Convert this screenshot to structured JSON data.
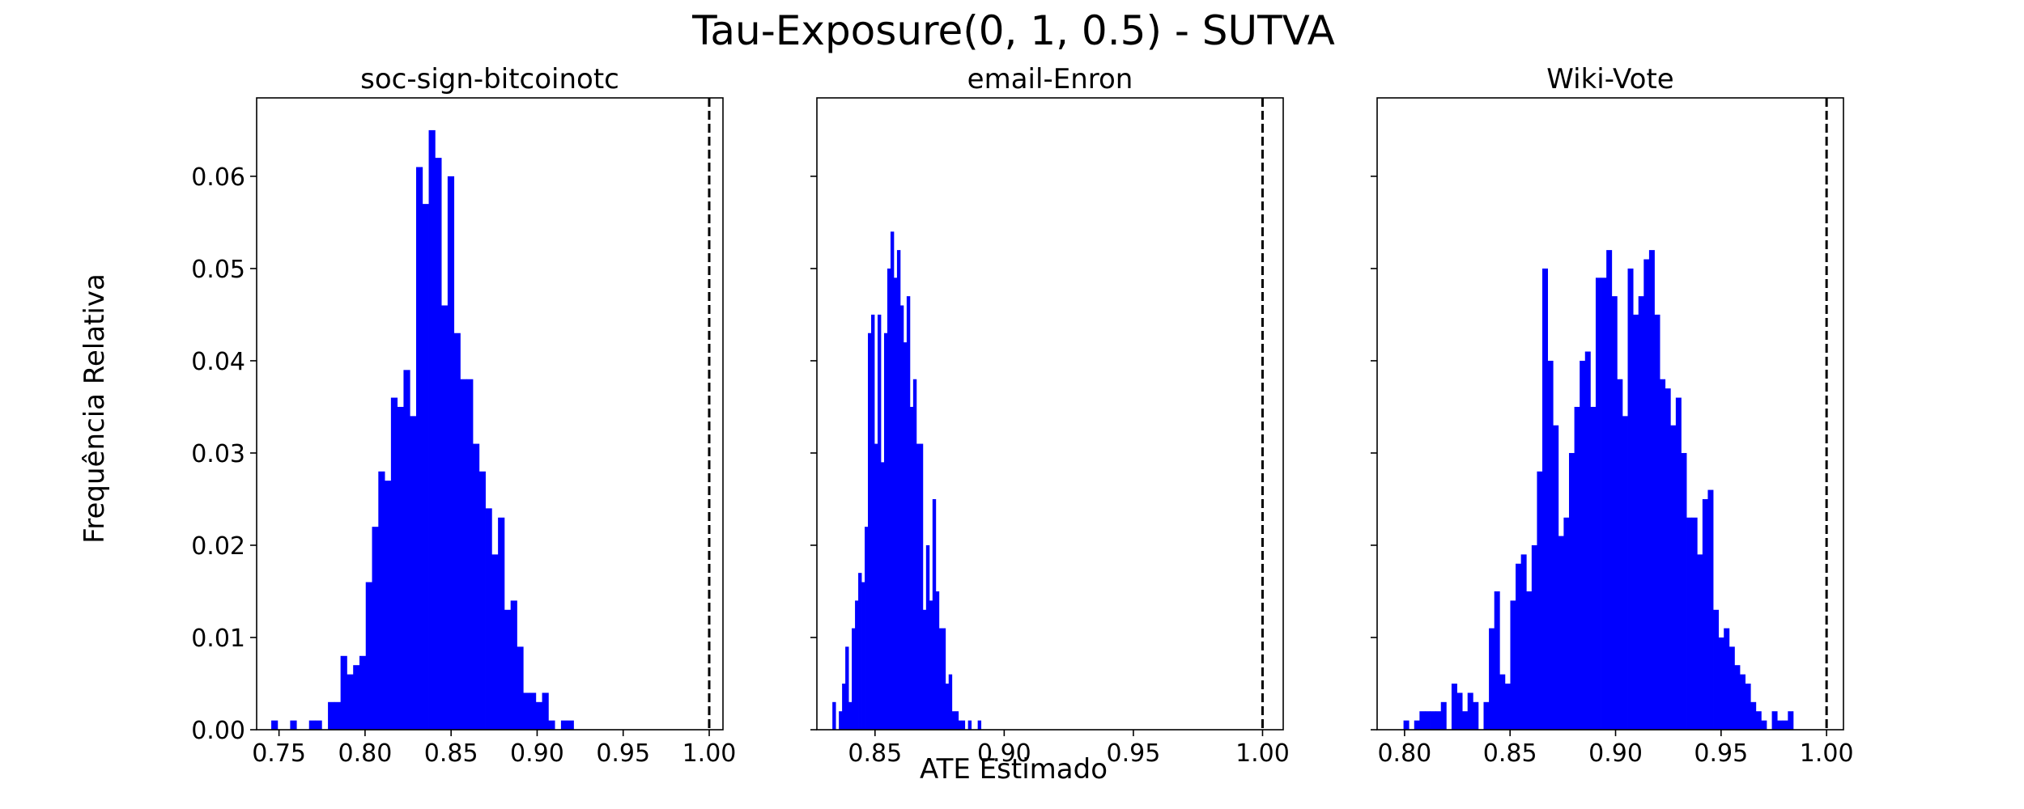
{
  "figure": {
    "suptitle": "Tau-Exposure(0, 1, 0.5) - SUTVA",
    "xlabel": "ATE Estimado",
    "ylabel": "Frequência Relativa"
  },
  "colors": {
    "bars": "#0000ff",
    "reference_line": "#000000"
  },
  "chart_data": [
    {
      "type": "bar",
      "title": "soc-sign-bitcoinotc",
      "xlim": [
        0.737,
        1.008
      ],
      "ylim": [
        0,
        0.0685
      ],
      "xticks": [
        0.75,
        0.8,
        0.85,
        0.9,
        0.95,
        1.0
      ],
      "xtick_labels": [
        "0.75",
        "0.80",
        "0.85",
        "0.90",
        "0.95",
        "1.00"
      ],
      "yticks": [
        0.0,
        0.01,
        0.02,
        0.03,
        0.04,
        0.05,
        0.06
      ],
      "ytick_labels": [
        "0.00",
        "0.01",
        "0.02",
        "0.03",
        "0.04",
        "0.05",
        "0.06"
      ],
      "show_ytick_labels": true,
      "bin_start": 0.7455,
      "bin_width": 0.00366,
      "values": [
        0.001,
        0.0,
        0.0,
        0.001,
        0.0,
        0.0,
        0.001,
        0.001,
        0.0,
        0.003,
        0.003,
        0.008,
        0.006,
        0.007,
        0.008,
        0.016,
        0.022,
        0.028,
        0.027,
        0.036,
        0.035,
        0.039,
        0.034,
        0.061,
        0.057,
        0.065,
        0.062,
        0.046,
        0.06,
        0.043,
        0.038,
        0.038,
        0.031,
        0.028,
        0.024,
        0.019,
        0.023,
        0.013,
        0.014,
        0.009,
        0.004,
        0.004,
        0.003,
        0.004,
        0.001,
        0.0,
        0.001,
        0.001
      ],
      "reference_line": 1.0
    },
    {
      "type": "bar",
      "title": "email-Enron",
      "xlim": [
        0.8275,
        1.008
      ],
      "ylim": [
        0,
        0.0685
      ],
      "xticks": [
        0.85,
        0.9,
        0.95,
        1.0
      ],
      "xtick_labels": [
        "0.85",
        "0.90",
        "0.95",
        "1.00"
      ],
      "yticks": [
        0.0,
        0.01,
        0.02,
        0.03,
        0.04,
        0.05,
        0.06
      ],
      "ytick_labels": [],
      "show_ytick_labels": false,
      "bin_start": 0.8335,
      "bin_width": 0.00125,
      "values": [
        0.003,
        0.0,
        0.002,
        0.005,
        0.009,
        0.003,
        0.011,
        0.014,
        0.017,
        0.016,
        0.022,
        0.043,
        0.045,
        0.031,
        0.045,
        0.029,
        0.043,
        0.05,
        0.054,
        0.049,
        0.052,
        0.046,
        0.042,
        0.047,
        0.035,
        0.038,
        0.031,
        0.031,
        0.013,
        0.02,
        0.014,
        0.025,
        0.015,
        0.011,
        0.011,
        0.005,
        0.006,
        0.002,
        0.002,
        0.001,
        0.001,
        0.0,
        0.001,
        0.0,
        0.0,
        0.001
      ],
      "reference_line": 1.0
    },
    {
      "type": "bar",
      "title": "Wiki-Vote",
      "xlim": [
        0.787,
        1.008
      ],
      "ylim": [
        0,
        0.0685
      ],
      "xticks": [
        0.8,
        0.85,
        0.9,
        0.95,
        1.0
      ],
      "xtick_labels": [
        "0.80",
        "0.85",
        "0.90",
        "0.95",
        "1.00"
      ],
      "yticks": [
        0.0,
        0.01,
        0.02,
        0.03,
        0.04,
        0.05,
        0.06
      ],
      "ytick_labels": [],
      "show_ytick_labels": false,
      "bin_start": 0.7995,
      "bin_width": 0.00253,
      "values": [
        0.001,
        0.0,
        0.001,
        0.002,
        0.002,
        0.002,
        0.002,
        0.003,
        0.0,
        0.005,
        0.004,
        0.002,
        0.004,
        0.003,
        0.0,
        0.003,
        0.011,
        0.015,
        0.006,
        0.005,
        0.014,
        0.018,
        0.019,
        0.015,
        0.02,
        0.028,
        0.05,
        0.04,
        0.033,
        0.021,
        0.023,
        0.03,
        0.035,
        0.04,
        0.041,
        0.035,
        0.049,
        0.049,
        0.052,
        0.047,
        0.038,
        0.034,
        0.05,
        0.045,
        0.047,
        0.051,
        0.052,
        0.045,
        0.038,
        0.037,
        0.033,
        0.036,
        0.03,
        0.023,
        0.023,
        0.019,
        0.025,
        0.026,
        0.013,
        0.01,
        0.011,
        0.009,
        0.007,
        0.006,
        0.005,
        0.003,
        0.002,
        0.001,
        0.0,
        0.002,
        0.001,
        0.001,
        0.002
      ],
      "reference_line": 1.0
    }
  ]
}
